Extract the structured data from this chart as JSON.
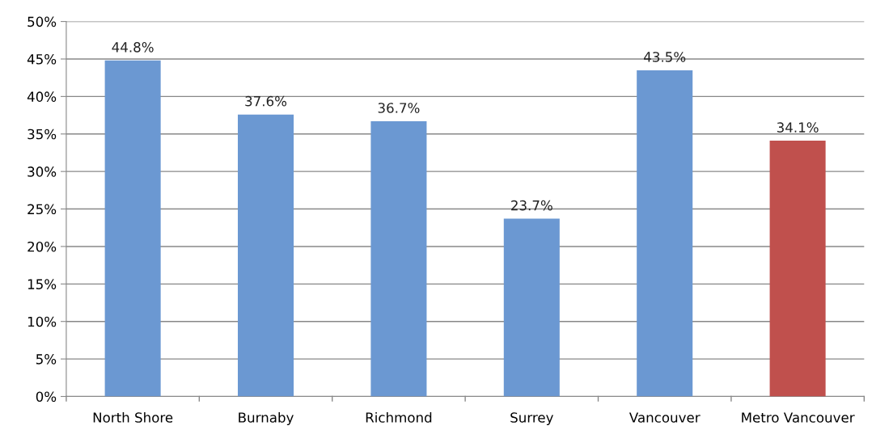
{
  "chart_data": {
    "type": "bar",
    "categories": [
      "North Shore",
      "Burnaby",
      "Richmond",
      "Surrey",
      "Vancouver",
      "Metro Vancouver"
    ],
    "values": [
      44.8,
      37.6,
      36.7,
      23.7,
      43.5,
      34.1
    ],
    "colors": [
      "#6b98d2",
      "#6b98d2",
      "#6b98d2",
      "#6b98d2",
      "#6b98d2",
      "#c0504d"
    ],
    "value_labels": [
      "44.8%",
      "37.6%",
      "36.7%",
      "23.7%",
      "43.5%",
      "34.1%"
    ],
    "ylim": [
      0,
      50
    ],
    "yticks": [
      {
        "value": 0,
        "label": "0%"
      },
      {
        "value": 5,
        "label": "5%"
      },
      {
        "value": 10,
        "label": "10%"
      },
      {
        "value": 15,
        "label": "15%"
      },
      {
        "value": 20,
        "label": "20%"
      },
      {
        "value": 25,
        "label": "25%"
      },
      {
        "value": 30,
        "label": "30%"
      },
      {
        "value": 35,
        "label": "35%"
      },
      {
        "value": 40,
        "label": "40%"
      },
      {
        "value": 45,
        "label": "45%"
      },
      {
        "value": 50,
        "label": "50%"
      }
    ],
    "grid": "y",
    "legend": false
  }
}
